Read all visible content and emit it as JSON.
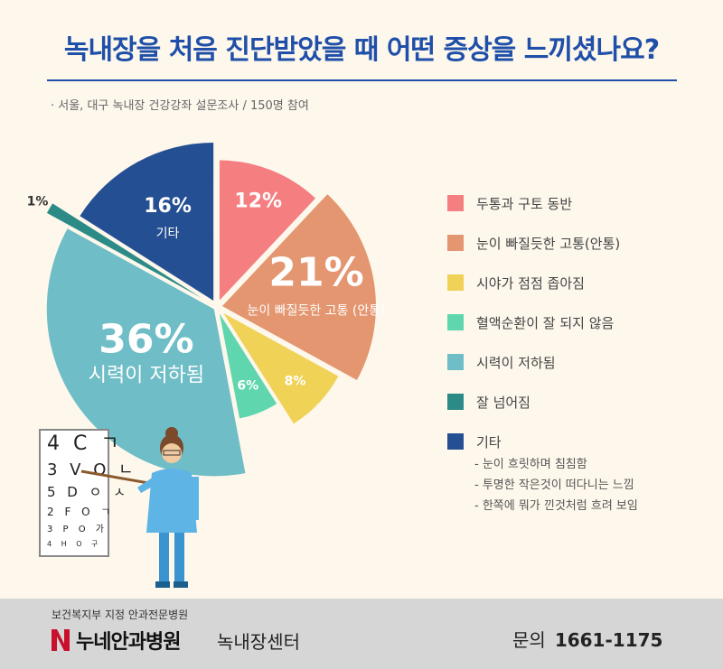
{
  "title": "녹내장을 처음 진단받았을 때 어떤 증상을 느끼셨나요?",
  "subtitle": "· 서울, 대구 녹내장 건강강좌 설문조사 / 150명 참여",
  "chart_data": {
    "type": "pie",
    "title": "녹내장을 처음 진단받았을 때 어떤 증상을 느끼셨나요?",
    "unit": "%",
    "slices": [
      {
        "name": "두통과 구토 동반",
        "value": 12,
        "color": "#f47e80",
        "label": "12%",
        "desc": ""
      },
      {
        "name": "눈이 빠질듯한 고통(안통)",
        "value": 21,
        "color": "#e3966f",
        "label": "21%",
        "desc": "눈이 빠질듯한 고통 (안통)"
      },
      {
        "name": "시야가 점점 좁아짐",
        "value": 8,
        "color": "#f0d257",
        "label": "8%",
        "desc": ""
      },
      {
        "name": "혈액순환이 잘 되지 않음",
        "value": 6,
        "color": "#5fd6ad",
        "label": "6%",
        "desc": ""
      },
      {
        "name": "시력이 저하됨",
        "value": 36,
        "color": "#6fbdc6",
        "label": "36%",
        "desc": "시력이 저하됨"
      },
      {
        "name": "잘 넘어짐",
        "value": 1,
        "color": "#2d8b87",
        "label": "1%",
        "desc": ""
      },
      {
        "name": "기타",
        "value": 16,
        "color": "#244f92",
        "label": "16%",
        "desc": "기타"
      }
    ],
    "legend_position": "right"
  },
  "legend": [
    {
      "label": "두통과 구토 동반",
      "color": "#f47e80"
    },
    {
      "label": "눈이 빠질듯한 고통(안통)",
      "color": "#e3966f"
    },
    {
      "label": "시야가 점점 좁아짐",
      "color": "#f0d257"
    },
    {
      "label": "혈액순환이 잘 되지 않음",
      "color": "#5fd6ad"
    },
    {
      "label": "시력이 저하됨",
      "color": "#6fbdc6"
    },
    {
      "label": "잘 넘어짐",
      "color": "#2d8b87"
    },
    {
      "label": "기타",
      "color": "#244f92"
    }
  ],
  "notes": [
    "- 눈이 흐릿하며 침침함",
    "- 투명한 작은것이 떠다니는 느낌",
    "- 한쪽에 뭐가 낀것처럼 흐려 보임"
  ],
  "eye_chart": [
    [
      "4",
      "C",
      "ㄱ"
    ],
    [
      "3",
      "V",
      "O",
      "ㄴ"
    ],
    [
      "5",
      "D",
      "ㅇ",
      "ㅅ"
    ],
    [
      "2",
      "F",
      "O",
      "ㄱ"
    ],
    [
      "3",
      "P",
      "O",
      "가"
    ],
    [
      "4",
      "H",
      "O",
      "구"
    ]
  ],
  "footer": {
    "designation": "보건복지부 지정 안과전문병원",
    "hospital": "누네안과병원",
    "center": "녹내장센터",
    "contact_label": "문의",
    "contact_number": "1661-1175"
  }
}
